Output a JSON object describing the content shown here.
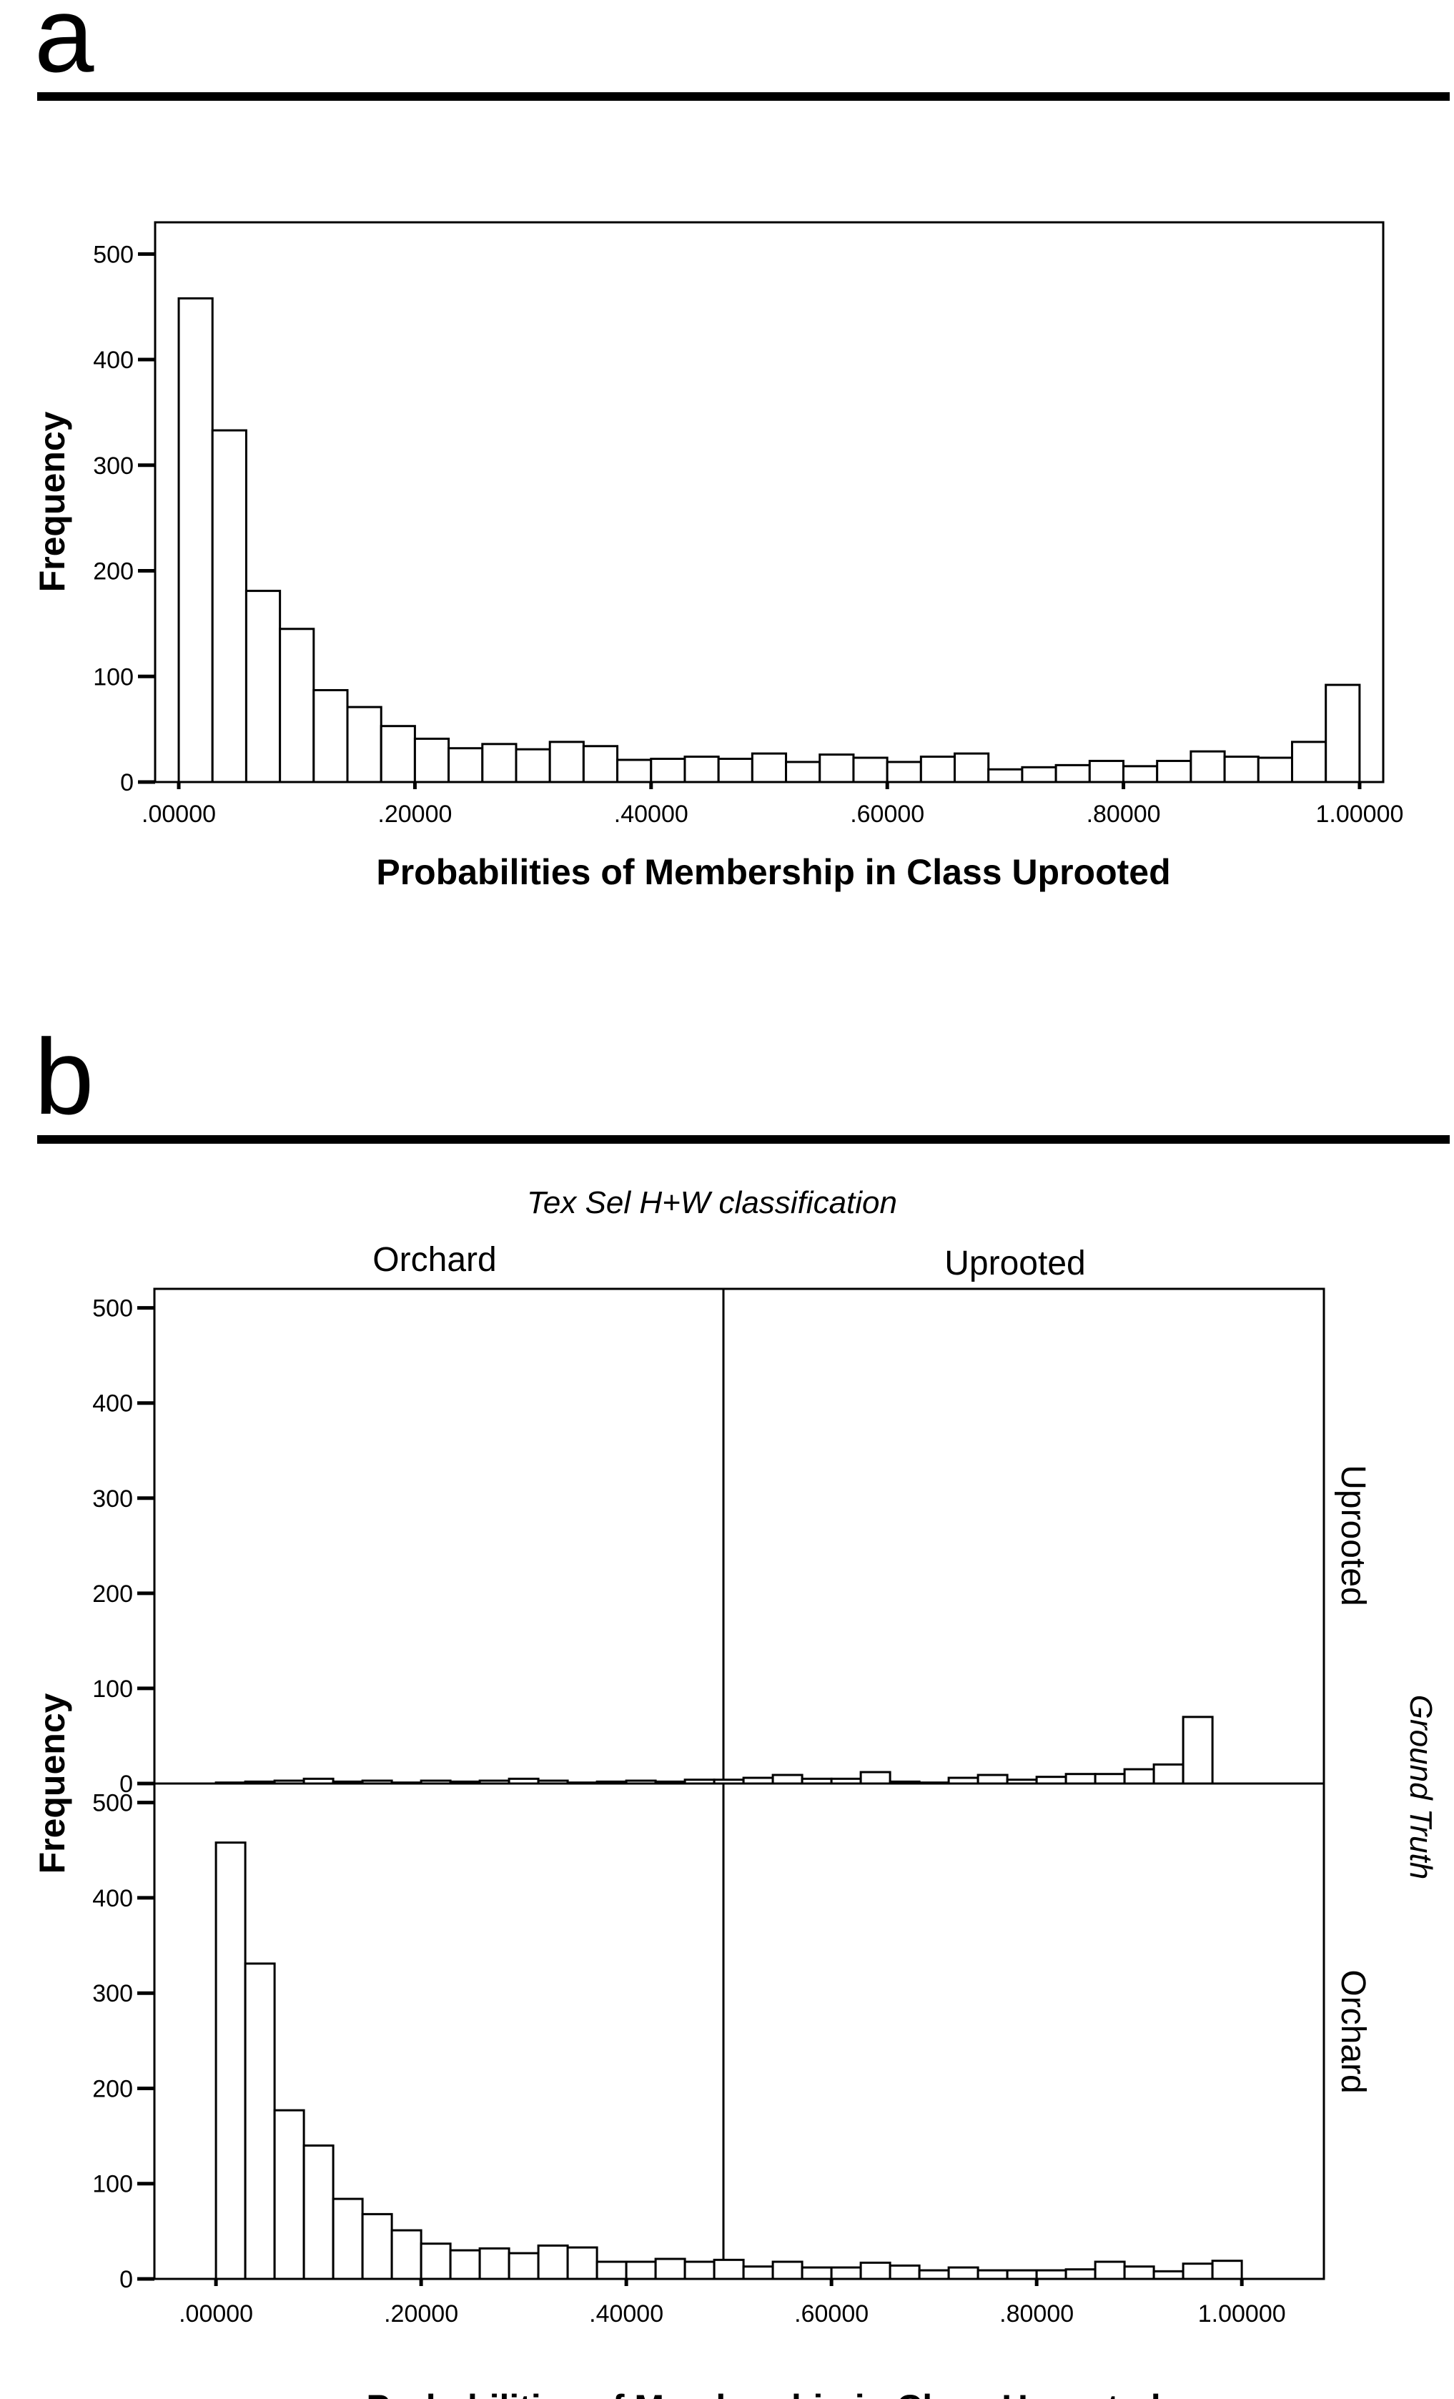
{
  "chart_data": [
    {
      "panel_letter": "a",
      "type": "bar",
      "xlabel": "Probabilities of Membership in Class Uprooted",
      "ylabel": "Frequency",
      "xlim": [
        -0.02,
        1.02
      ],
      "ylim": [
        0,
        530
      ],
      "x_ticks": [
        0,
        0.2,
        0.4,
        0.6,
        0.8,
        1.0
      ],
      "x_tick_labels": [
        ".00000",
        ".20000",
        ".40000",
        ".60000",
        ".80000",
        "1.00000"
      ],
      "y_ticks": [
        0,
        100,
        200,
        300,
        400,
        500
      ],
      "y_tick_labels": [
        "0",
        "100",
        "200",
        "300",
        "400",
        "500"
      ],
      "bin_start": 0.0,
      "bin_width": 0.02857,
      "values": [
        458,
        333,
        181,
        145,
        87,
        71,
        53,
        41,
        32,
        36,
        31,
        38,
        34,
        21,
        22,
        24,
        22,
        27,
        19,
        26,
        23,
        19,
        24,
        27,
        12,
        14,
        16,
        20,
        15,
        20,
        29,
        24,
        23,
        38,
        92
      ]
    },
    {
      "panel_letter": "b",
      "type": "bar",
      "facet_title": "Tex Sel H+W classification",
      "row_title": "Ground Truth",
      "columns": [
        "Orchard",
        "Uprooted"
      ],
      "rows": [
        "Uprooted",
        "Orchard"
      ],
      "xlabel": "Probabilities of Membership in Class Uprooted",
      "ylabel": "Frequency",
      "xlim": [
        -0.06,
        1.08
      ],
      "ylim": [
        0,
        520
      ],
      "x_ticks": [
        0,
        0.2,
        0.4,
        0.6,
        0.8,
        1.0
      ],
      "x_tick_labels": [
        ".00000",
        ".20000",
        ".40000",
        ".60000",
        ".80000",
        "1.00000"
      ],
      "y_ticks": [
        0,
        100,
        200,
        300,
        400,
        500
      ],
      "y_tick_labels": [
        "0",
        "100",
        "200",
        "300",
        "400",
        "500"
      ],
      "bin_start": 0.0,
      "bin_width": 0.02857,
      "series": [
        {
          "name": "Ground Truth: Uprooted",
          "values": [
            1,
            2,
            3,
            5,
            2,
            3,
            1,
            3,
            2,
            3,
            5,
            3,
            1,
            2,
            3,
            2,
            4,
            4,
            6,
            9,
            5,
            5,
            12,
            2,
            1,
            6,
            9,
            4,
            7,
            10,
            10,
            15,
            20,
            70,
            0
          ]
        },
        {
          "name": "Ground Truth: Orchard",
          "values": [
            458,
            331,
            177,
            140,
            84,
            68,
            51,
            37,
            30,
            32,
            27,
            35,
            33,
            18,
            18,
            21,
            18,
            20,
            13,
            18,
            12,
            12,
            17,
            14,
            9,
            12,
            9,
            9,
            9,
            10,
            18,
            13,
            8,
            16,
            19
          ]
        }
      ]
    }
  ]
}
